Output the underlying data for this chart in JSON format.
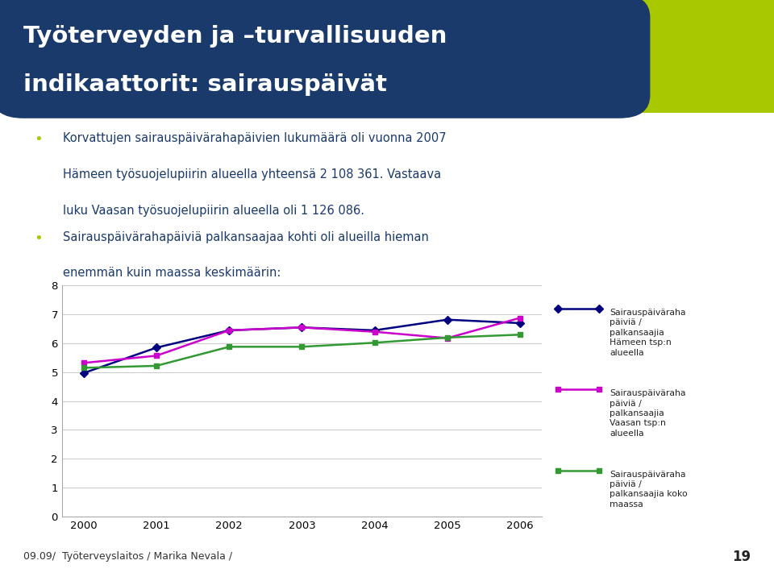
{
  "years": [
    2000,
    2001,
    2002,
    2003,
    2004,
    2005,
    2006
  ],
  "hameen": [
    4.97,
    5.85,
    6.45,
    6.55,
    6.45,
    6.82,
    6.7
  ],
  "vaasan": [
    5.32,
    5.57,
    6.45,
    6.55,
    6.4,
    6.18,
    6.88
  ],
  "koko_maa": [
    5.15,
    5.22,
    5.88,
    5.88,
    6.02,
    6.2,
    6.3
  ],
  "hameen_color": "#000080",
  "vaasan_color": "#cc00cc",
  "koko_maa_color": "#339933",
  "ylim": [
    0,
    8
  ],
  "yticks": [
    0,
    1,
    2,
    3,
    4,
    5,
    6,
    7,
    8
  ],
  "title_line1": "Työterveyden ja –turvallisuuden",
  "title_line2": "indikaattorit: sairauspäivät",
  "title_bg_color": "#1a3a6b",
  "title_text_color": "#ffffff",
  "bullet1_line1": "Korvattujen sairauspäivärahapäivien lukumäärä oli vuonna 2007",
  "bullet1_line2": "Hämeen työsuojelupiirin alueella yhteensä 2 108 361. Vastaava",
  "bullet1_line3": "luku Vaasan työsuojelupiirin alueella oli 1 126 086.",
  "bullet2": "Sairauspäivärahapäiviä palkansaajaa kohti oli alueilla hieman",
  "bullet2b": "enemmän kuin maassa keskimäärin:",
  "legend1": "Sairauspäiväraha\npäiviä /\npalkansaajia\nHämeen tsp:n\nalueella",
  "legend2": "Sairauspäiväraha\npäiviä /\npalkansaajia\nVaasan tsp:n\nalueella",
  "legend3": "Sairauspäiväraha\npäiviä /\npalkansaajia koko\nmaassa",
  "footer": "09.09/  Työterveyslaitos / Marika Nevala /",
  "page_num": "19",
  "bg_color": "#ffffff",
  "header_accent_color": "#a8c800",
  "body_text_color": "#1a3a6b",
  "bullet_color": "#a8c800"
}
